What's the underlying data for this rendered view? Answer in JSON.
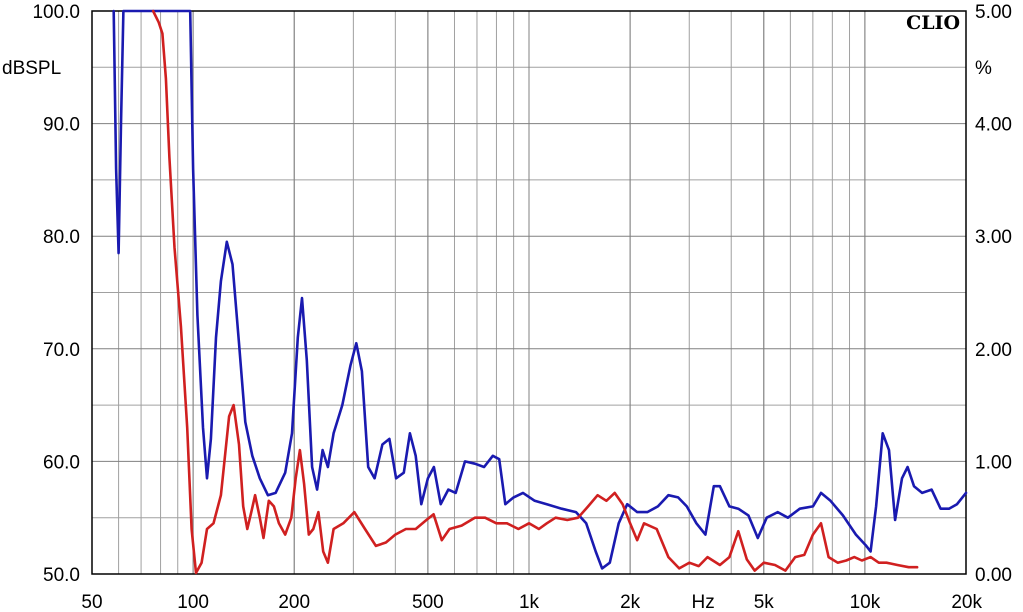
{
  "chart_data": {
    "type": "line",
    "brand": "CLIO",
    "x_axis": {
      "scale": "log",
      "unit": "Hz",
      "range": [
        50,
        20000
      ],
      "ticks": [
        {
          "value": 50,
          "label": "50"
        },
        {
          "value": 100,
          "label": "100"
        },
        {
          "value": 200,
          "label": "200"
        },
        {
          "value": 500,
          "label": "500"
        },
        {
          "value": 1000,
          "label": "1k"
        },
        {
          "value": 2000,
          "label": "2k"
        },
        {
          "value": 5000,
          "label": "5k"
        },
        {
          "value": 10000,
          "label": "10k"
        },
        {
          "value": 20000,
          "label": "20k"
        }
      ]
    },
    "y_left": {
      "unit": "dBSPL",
      "range": [
        50,
        100
      ],
      "ticks": [
        {
          "value": 50,
          "label": "50.0"
        },
        {
          "value": 60,
          "label": "60.0"
        },
        {
          "value": 70,
          "label": "70.0"
        },
        {
          "value": 80,
          "label": "80.0"
        },
        {
          "value": 90,
          "label": "90.0"
        },
        {
          "value": 100,
          "label": "100.0"
        }
      ]
    },
    "y_right": {
      "unit": "%",
      "range": [
        0,
        5
      ],
      "ticks": [
        {
          "value": 0,
          "label": "0.00"
        },
        {
          "value": 1,
          "label": "1.00"
        },
        {
          "value": 2,
          "label": "2.00"
        },
        {
          "value": 3,
          "label": "3.00"
        },
        {
          "value": 4,
          "label": "4.00"
        },
        {
          "value": 5,
          "label": "5.00"
        }
      ]
    },
    "grid": true,
    "colors": {
      "blue_series": "#1a1ab0",
      "red_series": "#d02020",
      "grid": "#a0a0a0"
    },
    "series": [
      {
        "color": "#1a1ab0",
        "axis": "right",
        "points": [
          [
            58,
            5.0
          ],
          [
            59,
            3.6
          ],
          [
            60,
            2.85
          ],
          [
            61,
            4.0
          ],
          [
            62,
            5.0
          ],
          [
            98,
            5.0
          ],
          [
            100,
            3.6
          ],
          [
            103,
            2.3
          ],
          [
            107,
            1.3
          ],
          [
            110,
            0.85
          ],
          [
            113,
            1.2
          ],
          [
            117,
            2.1
          ],
          [
            121,
            2.6
          ],
          [
            126,
            2.95
          ],
          [
            131,
            2.75
          ],
          [
            137,
            2.05
          ],
          [
            143,
            1.35
          ],
          [
            150,
            1.05
          ],
          [
            158,
            0.85
          ],
          [
            167,
            0.7
          ],
          [
            176,
            0.72
          ],
          [
            188,
            0.9
          ],
          [
            197,
            1.25
          ],
          [
            205,
            2.1
          ],
          [
            211,
            2.45
          ],
          [
            218,
            1.9
          ],
          [
            226,
            0.95
          ],
          [
            234,
            0.75
          ],
          [
            243,
            1.1
          ],
          [
            252,
            0.95
          ],
          [
            262,
            1.25
          ],
          [
            278,
            1.5
          ],
          [
            294,
            1.85
          ],
          [
            306,
            2.05
          ],
          [
            318,
            1.8
          ],
          [
            332,
            0.95
          ],
          [
            347,
            0.85
          ],
          [
            366,
            1.15
          ],
          [
            384,
            1.2
          ],
          [
            402,
            0.85
          ],
          [
            424,
            0.9
          ],
          [
            442,
            1.25
          ],
          [
            460,
            1.05
          ],
          [
            478,
            0.62
          ],
          [
            500,
            0.85
          ],
          [
            521,
            0.95
          ],
          [
            546,
            0.62
          ],
          [
            575,
            0.75
          ],
          [
            605,
            0.72
          ],
          [
            645,
            1.0
          ],
          [
            690,
            0.98
          ],
          [
            735,
            0.95
          ],
          [
            780,
            1.05
          ],
          [
            815,
            1.02
          ],
          [
            850,
            0.62
          ],
          [
            900,
            0.68
          ],
          [
            960,
            0.72
          ],
          [
            1040,
            0.65
          ],
          [
            1130,
            0.62
          ],
          [
            1250,
            0.58
          ],
          [
            1380,
            0.55
          ],
          [
            1480,
            0.45
          ],
          [
            1580,
            0.2
          ],
          [
            1650,
            0.05
          ],
          [
            1740,
            0.1
          ],
          [
            1850,
            0.45
          ],
          [
            1960,
            0.62
          ],
          [
            2100,
            0.55
          ],
          [
            2250,
            0.55
          ],
          [
            2420,
            0.6
          ],
          [
            2600,
            0.7
          ],
          [
            2780,
            0.68
          ],
          [
            2950,
            0.6
          ],
          [
            3150,
            0.45
          ],
          [
            3350,
            0.35
          ],
          [
            3550,
            0.78
          ],
          [
            3700,
            0.78
          ],
          [
            3950,
            0.6
          ],
          [
            4200,
            0.58
          ],
          [
            4500,
            0.52
          ],
          [
            4800,
            0.32
          ],
          [
            5100,
            0.5
          ],
          [
            5500,
            0.55
          ],
          [
            5900,
            0.5
          ],
          [
            6400,
            0.58
          ],
          [
            7000,
            0.6
          ],
          [
            7400,
            0.72
          ],
          [
            7900,
            0.65
          ],
          [
            8600,
            0.52
          ],
          [
            9400,
            0.35
          ],
          [
            10100,
            0.25
          ],
          [
            10400,
            0.2
          ],
          [
            10800,
            0.6
          ],
          [
            11300,
            1.25
          ],
          [
            11800,
            1.1
          ],
          [
            12300,
            0.48
          ],
          [
            12900,
            0.85
          ],
          [
            13400,
            0.95
          ],
          [
            14000,
            0.78
          ],
          [
            14800,
            0.72
          ],
          [
            15800,
            0.75
          ],
          [
            16800,
            0.58
          ],
          [
            17800,
            0.58
          ],
          [
            18800,
            0.62
          ],
          [
            20000,
            0.72
          ]
        ]
      },
      {
        "color": "#d02020",
        "axis": "left",
        "points": [
          [
            76,
            100
          ],
          [
            79,
            99
          ],
          [
            81,
            98
          ],
          [
            83,
            94
          ],
          [
            85,
            87
          ],
          [
            88,
            79
          ],
          [
            92,
            72
          ],
          [
            96,
            63
          ],
          [
            99,
            54
          ],
          [
            102,
            50.1
          ],
          [
            106,
            51
          ],
          [
            110,
            54
          ],
          [
            115,
            54.5
          ],
          [
            121,
            57
          ],
          [
            128,
            64
          ],
          [
            132,
            65
          ],
          [
            137,
            61.5
          ],
          [
            141,
            56
          ],
          [
            145,
            54
          ],
          [
            149,
            55.5
          ],
          [
            153,
            57
          ],
          [
            158,
            55
          ],
          [
            162,
            53.2
          ],
          [
            168,
            56.5
          ],
          [
            174,
            56
          ],
          [
            180,
            54.5
          ],
          [
            188,
            53.5
          ],
          [
            196,
            55
          ],
          [
            202,
            58.5
          ],
          [
            208,
            61
          ],
          [
            214,
            58
          ],
          [
            221,
            53.5
          ],
          [
            228,
            54
          ],
          [
            236,
            55.5
          ],
          [
            244,
            52
          ],
          [
            252,
            51
          ],
          [
            262,
            54
          ],
          [
            280,
            54.5
          ],
          [
            302,
            55.5
          ],
          [
            325,
            54
          ],
          [
            350,
            52.5
          ],
          [
            375,
            52.8
          ],
          [
            400,
            53.5
          ],
          [
            430,
            54
          ],
          [
            460,
            54
          ],
          [
            495,
            54.8
          ],
          [
            520,
            55.3
          ],
          [
            550,
            53
          ],
          [
            580,
            54
          ],
          [
            630,
            54.3
          ],
          [
            690,
            55
          ],
          [
            740,
            55
          ],
          [
            800,
            54.5
          ],
          [
            860,
            54.5
          ],
          [
            930,
            54
          ],
          [
            1000,
            54.5
          ],
          [
            1070,
            54
          ],
          [
            1130,
            54.5
          ],
          [
            1200,
            55
          ],
          [
            1300,
            54.8
          ],
          [
            1400,
            55
          ],
          [
            1500,
            56
          ],
          [
            1600,
            57
          ],
          [
            1700,
            56.5
          ],
          [
            1800,
            57.2
          ],
          [
            1900,
            56.2
          ],
          [
            2000,
            54.5
          ],
          [
            2100,
            53
          ],
          [
            2200,
            54.5
          ],
          [
            2400,
            54
          ],
          [
            2600,
            51.5
          ],
          [
            2800,
            50.5
          ],
          [
            3000,
            51
          ],
          [
            3200,
            50.7
          ],
          [
            3400,
            51.5
          ],
          [
            3700,
            50.8
          ],
          [
            3950,
            51.5
          ],
          [
            4200,
            53.8
          ],
          [
            4450,
            51.3
          ],
          [
            4700,
            50.3
          ],
          [
            5000,
            51
          ],
          [
            5400,
            50.8
          ],
          [
            5800,
            50.3
          ],
          [
            6200,
            51.5
          ],
          [
            6600,
            51.7
          ],
          [
            7000,
            53.5
          ],
          [
            7400,
            54.5
          ],
          [
            7800,
            51.5
          ],
          [
            8300,
            51
          ],
          [
            8800,
            51.2
          ],
          [
            9300,
            51.5
          ],
          [
            9800,
            51.2
          ],
          [
            10400,
            51.5
          ],
          [
            11000,
            51
          ],
          [
            11600,
            51
          ],
          [
            12500,
            50.8
          ],
          [
            13500,
            50.6
          ],
          [
            14300,
            50.6
          ]
        ]
      }
    ]
  }
}
